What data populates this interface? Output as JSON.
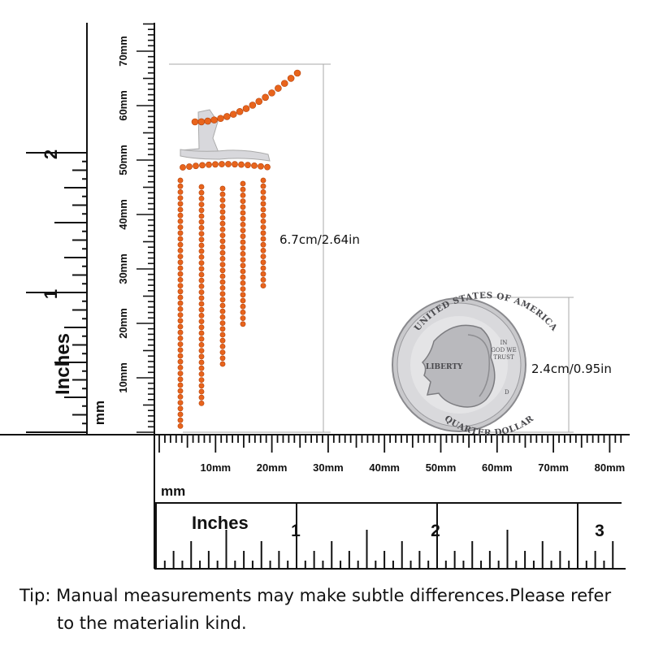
{
  "left_ruler": {
    "inch_unit": "Inches",
    "inch_numbers": [
      "1",
      "2"
    ],
    "mm_unit": "mm",
    "mm_labels": [
      "10mm",
      "20mm",
      "30mm",
      "40mm",
      "50mm",
      "60mm",
      "70mm"
    ]
  },
  "bottom_ruler": {
    "mm_labels": [
      "10mm",
      "20mm",
      "30mm",
      "40mm",
      "50mm",
      "60mm",
      "70mm",
      "80mm"
    ],
    "mm_unit": "mm",
    "inch_unit": "Inches",
    "inch_numbers": [
      "1",
      "2",
      "3"
    ]
  },
  "earring": {
    "length_label": "6.7cm/2.64in",
    "stone_color": "#e8641c",
    "metal_color": "#d8d8dc"
  },
  "coin": {
    "diameter_label": "2.4cm/0.95in",
    "top_text": "UNITED STATES OF AMERICA",
    "bottom_text": "QUARTER DOLLAR",
    "liberty": "LIBERTY",
    "motto_lines": [
      "IN",
      "GOD WE",
      "TRUST"
    ],
    "mint": "D"
  },
  "tip": {
    "line1": "Tip: Manual measurements may make subtle differences.Please refer",
    "line2": "to the materialin kind."
  }
}
